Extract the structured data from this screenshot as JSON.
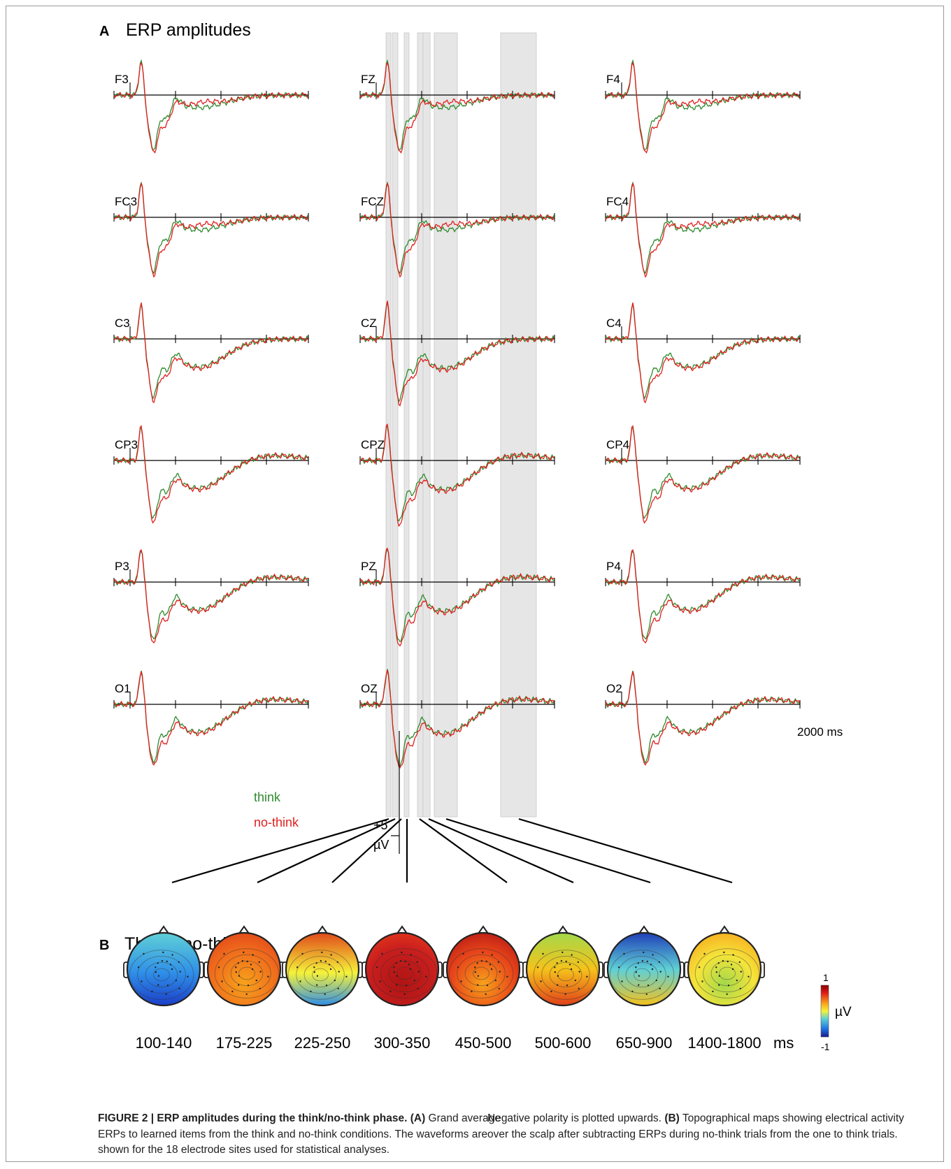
{
  "panel_a": {
    "letter": "A",
    "title": "ERP amplitudes",
    "electrodes": [
      [
        "F3",
        "FZ",
        "F4"
      ],
      [
        "FC3",
        "FCZ",
        "FC4"
      ],
      [
        "C3",
        "CZ",
        "C4"
      ],
      [
        "CP3",
        "CPZ",
        "CP4"
      ],
      [
        "P3",
        "PZ",
        "P4"
      ],
      [
        "O1",
        "OZ",
        "O2"
      ]
    ],
    "time_label": "2000 ms",
    "scale_value": "+5",
    "scale_unit": "µV",
    "legend": [
      {
        "label": "think",
        "color": "#2e8b2e"
      },
      {
        "label": "no-think",
        "color": "#e0201f"
      }
    ]
  },
  "panel_b": {
    "letter": "B",
    "title": "Think - no-think",
    "windows": [
      "100-140",
      "175-225",
      "225-250",
      "300-350",
      "450-500",
      "500-600",
      "650-900",
      "1400-1800"
    ],
    "unit": "ms",
    "colorbar": {
      "max": "1",
      "min": "-1",
      "unit": "µV"
    }
  },
  "caption": {
    "heading": "FIGURE 2 | ERP amplitudes during the think/no-think phase.",
    "part_a_label": "(A)",
    "part_a_text": " Grand average ERPs to learned items from the think and no-think conditions. The waveforms are shown for the 18 electrode sites used for statistical analyses.",
    "part_b_pre": "Negative polarity is plotted upwards. ",
    "part_b_label": "(B)",
    "part_b_text": " Topographical maps showing electrical activity over the scalp after subtracting ERPs during no-think trials from the one to think trials."
  },
  "colors": {
    "think": "#2e8b2e",
    "no_think": "#e0201f",
    "highlight": "#e6e6e6"
  }
}
